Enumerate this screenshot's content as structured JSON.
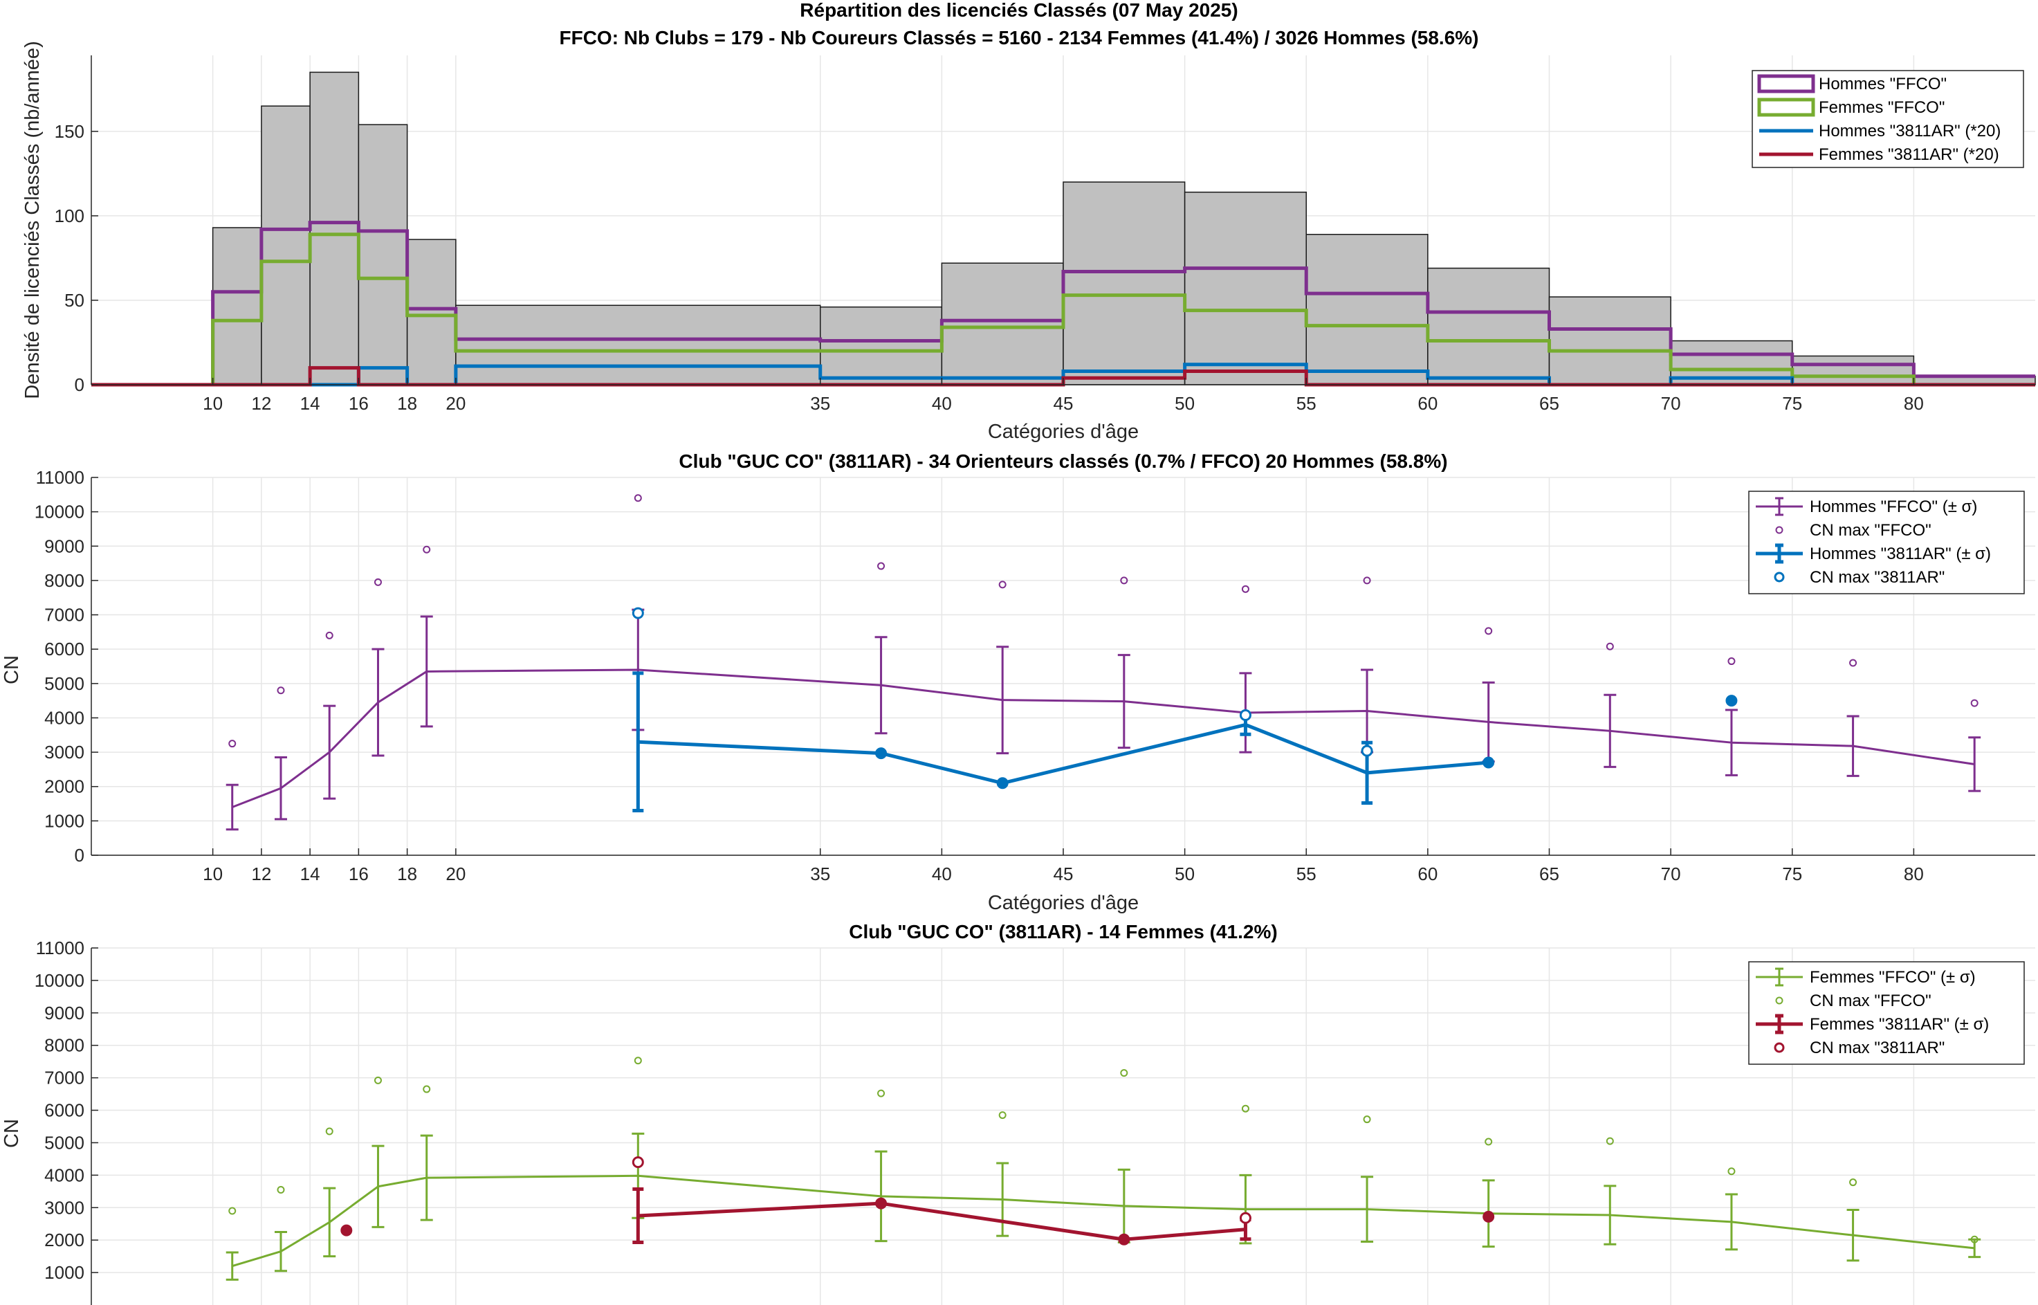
{
  "chart_data": [
    {
      "type": "histogram",
      "title": "Répartition des licenciés Classés (07 May 2025)",
      "subtitle": "FFCO: Nb Clubs = 179   -   Nb Coureurs Classés = 5160   -   2134 Femmes (41.4%) / 3026 Hommes (58.6%)",
      "xlabel": "Catégories d'âge",
      "ylabel": "Densité de licenciés Classés (nb/année)",
      "xlim": [
        5,
        85
      ],
      "ylim": [
        0,
        195
      ],
      "xticks": [
        10,
        12,
        14,
        16,
        18,
        20,
        35,
        40,
        45,
        50,
        55,
        60,
        65,
        70,
        75,
        80
      ],
      "yticks": [
        0,
        50,
        100,
        150
      ],
      "grid": true,
      "legend_position": "top-right",
      "bin_edges": [
        5,
        10,
        12,
        14,
        16,
        18,
        20,
        35,
        40,
        45,
        50,
        55,
        60,
        65,
        70,
        75,
        80,
        85
      ],
      "total_values": [
        0,
        93,
        165,
        185,
        154,
        86,
        47,
        46,
        72,
        120,
        114,
        89,
        69,
        52,
        26,
        17,
        5
      ],
      "colors": {
        "total_fill": "#c0c0c0",
        "total_edge": "#1a1a1a"
      },
      "series": [
        {
          "name": "Hommes \"FFCO\"",
          "color": "#7e2f8e",
          "values": [
            0,
            55,
            92,
            96,
            91,
            45,
            27,
            26,
            38,
            67,
            69,
            54,
            43,
            33,
            18,
            12,
            5
          ]
        },
        {
          "name": "Femmes \"FFCO\"",
          "color": "#77ac30",
          "values": [
            0,
            38,
            73,
            89,
            63,
            41,
            20,
            20,
            34,
            53,
            44,
            35,
            26,
            20,
            9,
            5,
            0
          ]
        },
        {
          "name": "Hommes \"3811AR\" (*20)",
          "color": "#0072bd",
          "values": [
            0,
            0,
            0,
            0,
            10,
            0,
            11,
            4,
            4,
            8,
            12,
            8,
            4,
            0,
            4,
            0,
            0
          ]
        },
        {
          "name": "Femmes \"3811AR\" (*20)",
          "color": "#a2142f",
          "values": [
            0,
            0,
            0,
            10,
            0,
            0,
            0,
            0,
            0,
            4,
            8,
            0,
            0,
            0,
            0,
            0,
            0
          ]
        }
      ]
    },
    {
      "type": "line-errorbar",
      "title": "Club \"GUC CO\" (3811AR)  -  34 Orienteurs classés (0.7% / FFCO)  20 Hommes (58.8%)",
      "xlabel": "Catégories d'âge",
      "ylabel": "CN",
      "xlim": [
        5,
        85
      ],
      "ylim": [
        0,
        11000
      ],
      "xticks": [
        10,
        12,
        14,
        16,
        18,
        20,
        35,
        40,
        45,
        50,
        55,
        60,
        65,
        70,
        75,
        80
      ],
      "yticks": [
        0,
        1000,
        2000,
        3000,
        4000,
        5000,
        6000,
        7000,
        8000,
        9000,
        10000,
        11000
      ],
      "grid": true,
      "legend_position": "top-right",
      "series": [
        {
          "name": "Hommes \"FFCO\" (± σ)",
          "color": "#7e2f8e",
          "x": [
            10.8,
            12.8,
            14.8,
            16.8,
            18.8,
            27.5,
            37.5,
            42.5,
            47.5,
            52.5,
            57.5,
            62.5,
            67.5,
            72.5,
            77.5,
            82.5
          ],
          "y": [
            1400,
            1950,
            3000,
            4450,
            5350,
            5400,
            4950,
            4520,
            4480,
            4150,
            4200,
            3880,
            3620,
            3280,
            3180,
            2650
          ],
          "err": [
            650,
            900,
            1350,
            1550,
            1600,
            1750,
            1400,
            1550,
            1350,
            1150,
            1200,
            1150,
            1050,
            950,
            870,
            780
          ],
          "cnmax_name": "CN max \"FFCO\"",
          "cnmax": [
            3250,
            4800,
            6400,
            7950,
            8900,
            10400,
            8420,
            7880,
            8000,
            7750,
            8000,
            6530,
            6080,
            5650,
            5600,
            4430
          ]
        },
        {
          "name": "Hommes \"3811AR\" (± σ)",
          "color": "#0072bd",
          "x": [
            27.5,
            37.5,
            42.5,
            52.5,
            57.5,
            62.5,
            72.5
          ],
          "y": [
            3300,
            2970,
            2100,
            3800,
            2400,
            2700,
            null
          ],
          "err": [
            2000,
            null,
            null,
            280,
            880,
            null,
            null
          ],
          "cnmax_name": "CN max \"3811AR\"",
          "cnmax": [
            7050,
            2970,
            2100,
            4080,
            3040,
            2700,
            4500
          ]
        }
      ]
    },
    {
      "type": "line-errorbar",
      "title": "Club \"GUC CO\" (3811AR)  -  14 Femmes (41.2%)",
      "ylabel": "CN",
      "xlim": [
        5,
        85
      ],
      "ylim": [
        0,
        11000
      ],
      "yticks": [
        1000,
        2000,
        3000,
        4000,
        5000,
        6000,
        7000,
        8000,
        9000,
        10000,
        11000
      ],
      "grid": true,
      "legend_position": "top-right",
      "series": [
        {
          "name": "Femmes \"FFCO\" (± σ)",
          "color": "#77ac30",
          "x": [
            10.8,
            12.8,
            14.8,
            16.8,
            18.8,
            27.5,
            37.5,
            42.5,
            47.5,
            52.5,
            57.5,
            62.5,
            67.5,
            72.5,
            77.5,
            82.5
          ],
          "y": [
            1200,
            1650,
            2550,
            3650,
            3920,
            3980,
            3350,
            3250,
            3050,
            2950,
            2950,
            2820,
            2770,
            2560,
            2150,
            1750
          ],
          "err": [
            420,
            600,
            1050,
            1250,
            1300,
            1300,
            1380,
            1120,
            1120,
            1050,
            1000,
            1020,
            900,
            850,
            780,
            270
          ],
          "cnmax_name": "CN max \"FFCO\"",
          "cnmax": [
            2900,
            3550,
            5350,
            6920,
            6650,
            7530,
            6520,
            5850,
            7150,
            6050,
            5720,
            5030,
            5050,
            4120,
            3780,
            2020
          ]
        },
        {
          "name": "Femmes \"3811AR\" (± σ)",
          "color": "#a2142f",
          "x": [
            15.5,
            27.5,
            37.5,
            47.5,
            52.5,
            62.5
          ],
          "y": [
            null,
            2750,
            3130,
            2020,
            2330,
            null
          ],
          "err": [
            null,
            820,
            null,
            null,
            300,
            null
          ],
          "cnmax_name": "CN max \"3811AR\"",
          "cnmax": [
            2300,
            4400,
            3130,
            2020,
            2680,
            2720
          ]
        }
      ]
    }
  ]
}
